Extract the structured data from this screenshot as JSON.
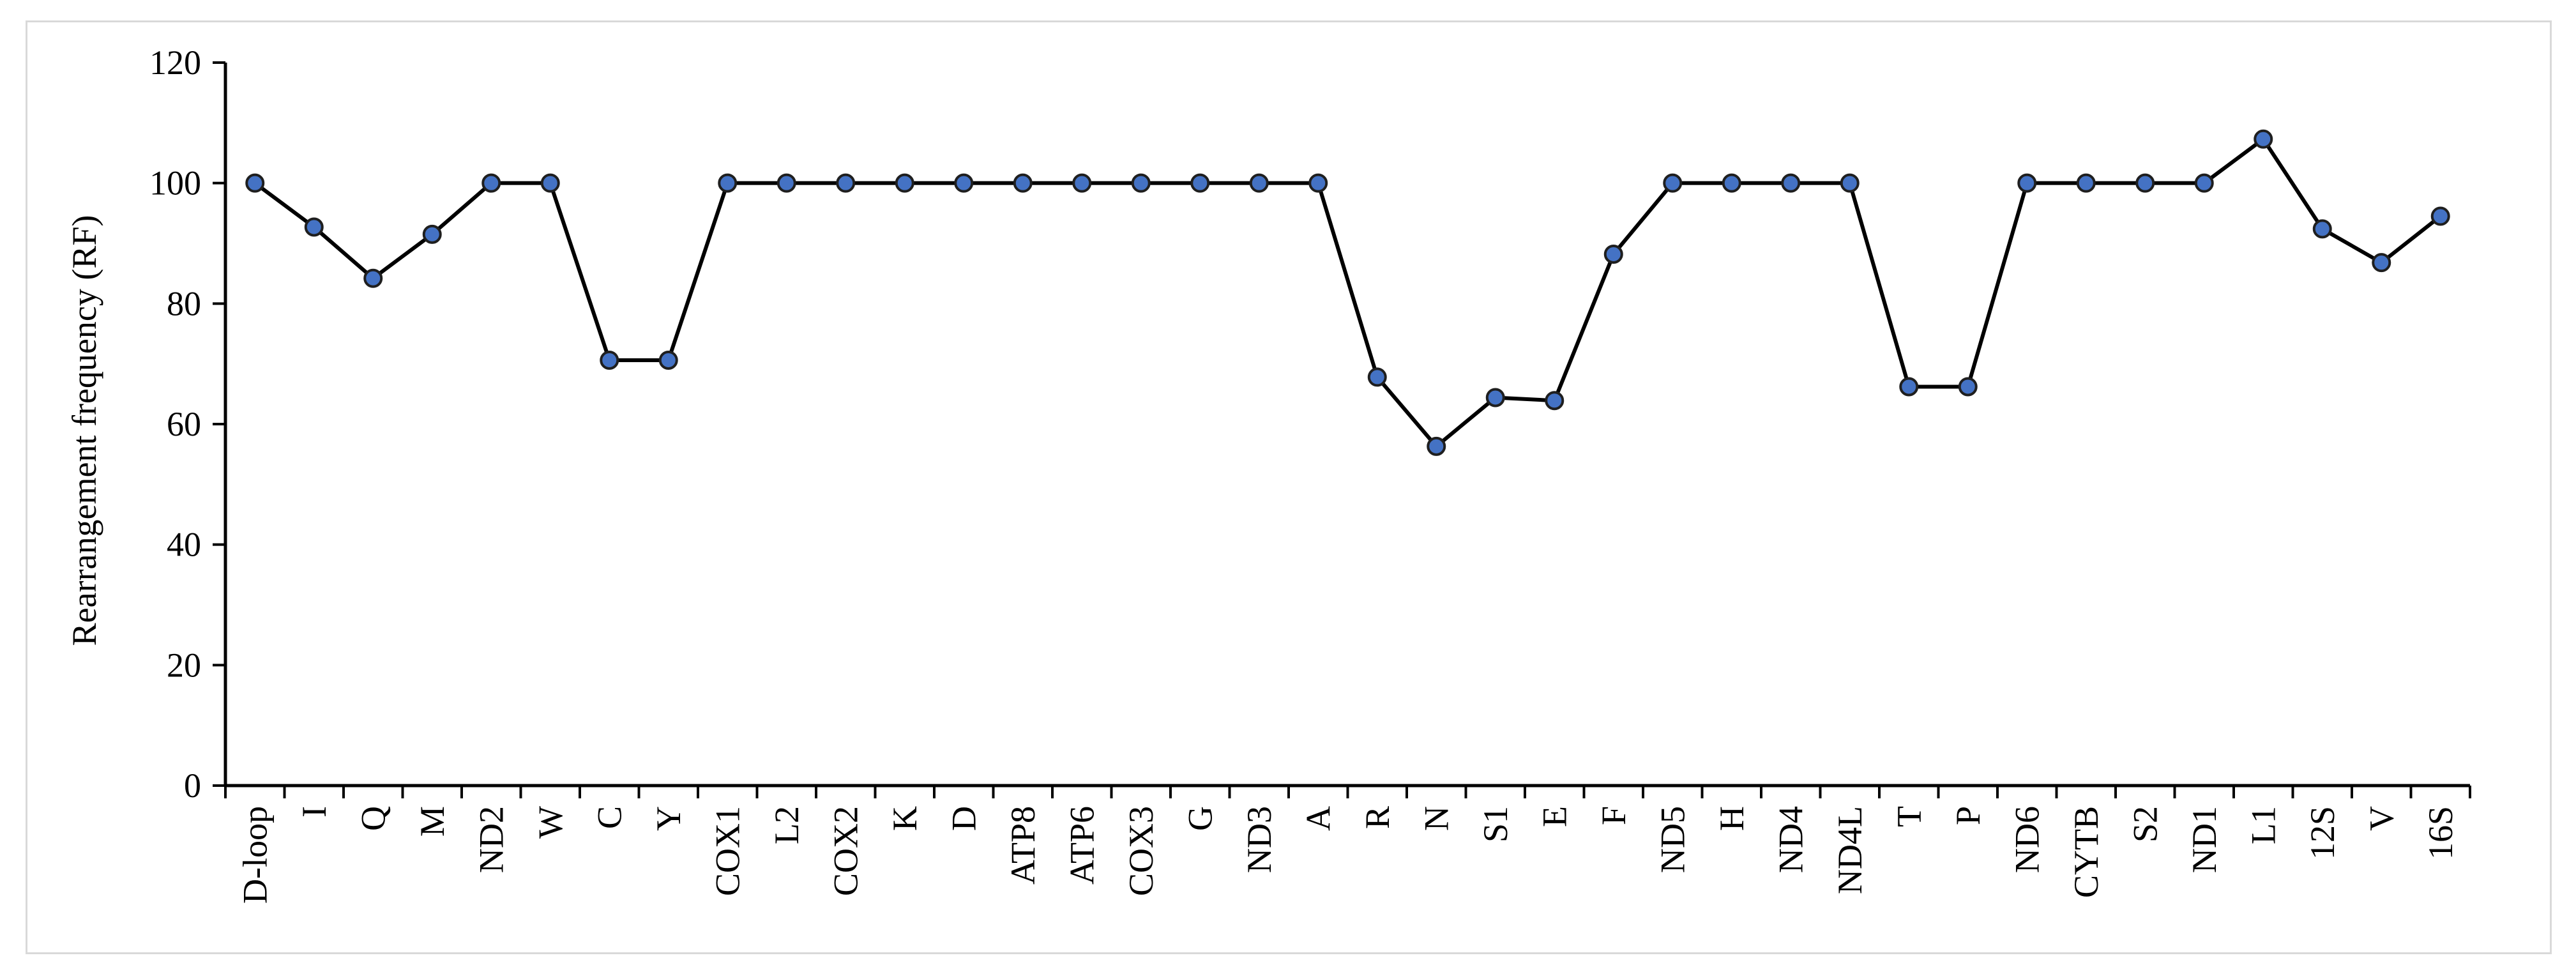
{
  "chart_data": {
    "type": "line",
    "title": "",
    "xlabel": "",
    "ylabel": "Rearrangement frequency (RF)",
    "ylim": [
      0,
      120
    ],
    "yticks": [
      0,
      20,
      40,
      60,
      80,
      100,
      120
    ],
    "grid": false,
    "legend": "none",
    "categories": [
      "D-loop",
      "I",
      "Q",
      "M",
      "ND2",
      "W",
      "C",
      "Y",
      "COX1",
      "L2",
      "COX2",
      "K",
      "D",
      "ATP8",
      "ATP6",
      "COX3",
      "G",
      "ND3",
      "A",
      "R",
      "N",
      "S1",
      "E",
      "F",
      "ND5",
      "H",
      "ND4",
      "ND4L",
      "T",
      "P",
      "ND6",
      "CYTB",
      "S2",
      "ND1",
      "L1",
      "12S",
      "V",
      "16S"
    ],
    "series": [
      {
        "values": [
          100,
          92.7,
          84.2,
          91.5,
          100,
          100,
          70.6,
          70.6,
          100,
          100,
          100,
          100,
          100,
          100,
          100,
          100,
          100,
          100,
          100,
          67.8,
          56.3,
          64.4,
          63.9,
          88.2,
          100,
          100,
          100,
          100,
          66.2,
          66.2,
          100,
          100,
          100,
          100,
          107.3,
          92.4,
          86.8,
          94.5
        ],
        "line_color": "#000000",
        "marker_color": "#4472c4",
        "marker_edge": "#1f1f1f"
      }
    ]
  }
}
